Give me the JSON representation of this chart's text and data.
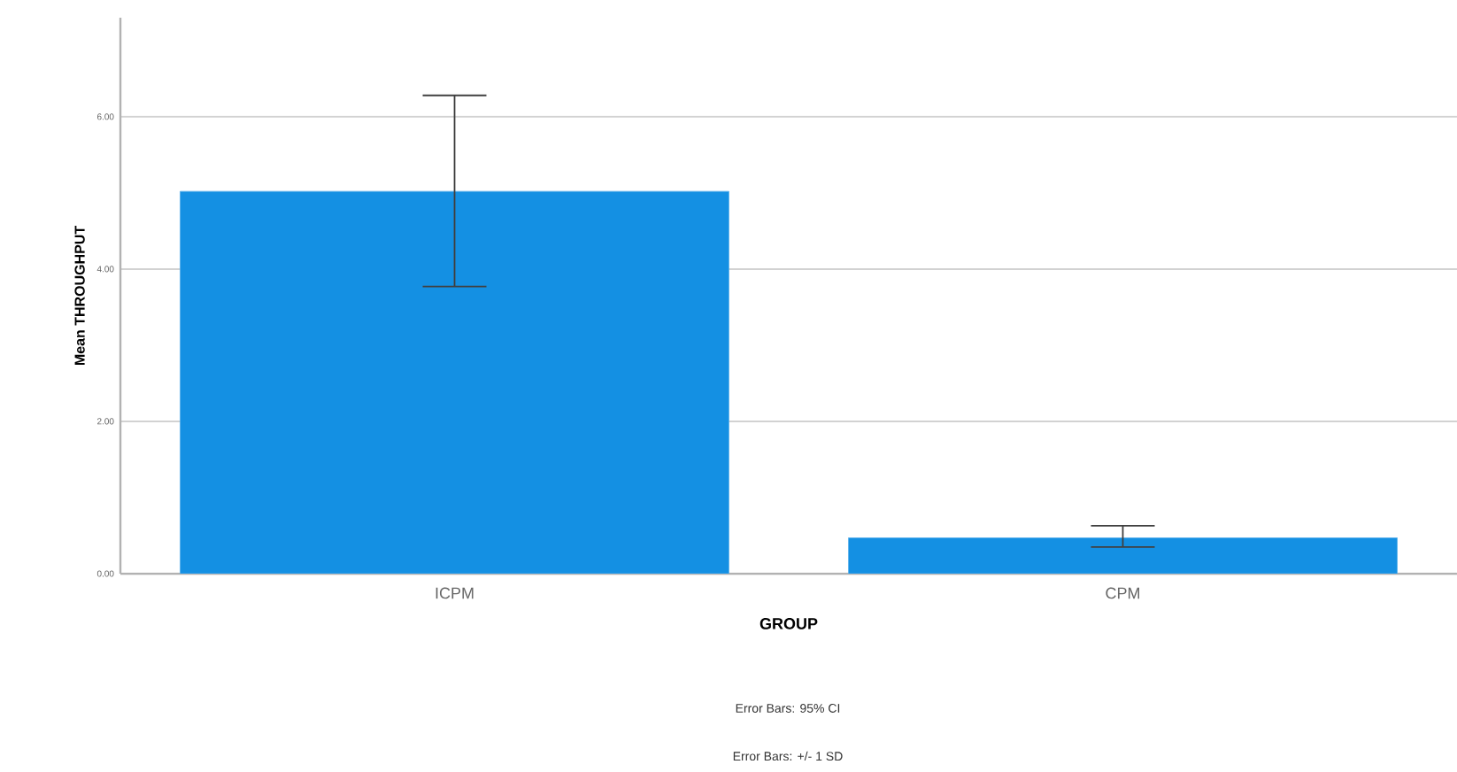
{
  "chart_data": {
    "type": "bar",
    "xlabel": "GROUP",
    "ylabel": "Mean THROUGHPUT",
    "categories": [
      "ICPM",
      "CPM"
    ],
    "values": [
      5.02,
      0.47
    ],
    "errors": [
      [
        3.77,
        6.28
      ],
      [
        0.35,
        0.63
      ]
    ],
    "color": "#1490e3",
    "ylim": [
      0,
      7.3
    ],
    "yticks": [
      {
        "value": 0,
        "label": "0.00"
      },
      {
        "value": 2,
        "label": "2.00"
      },
      {
        "value": 4,
        "label": "4.00"
      },
      {
        "value": 6,
        "label": "6.00"
      }
    ],
    "grid": "y",
    "annotations": [
      "Error Bars: 95% CI",
      "Error Bars: +/- 1 SD"
    ]
  }
}
